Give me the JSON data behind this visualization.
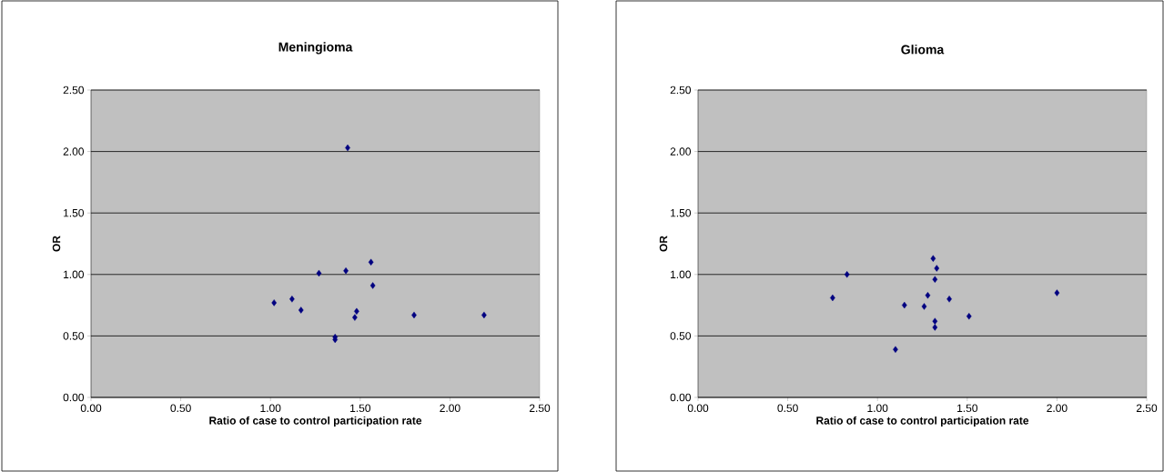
{
  "chart_data": [
    {
      "type": "scatter",
      "title": "Meningioma",
      "xlabel": "Ratio of case to control participation rate",
      "ylabel": "OR",
      "grid": "y",
      "marker": "diamond",
      "xlim": [
        0,
        2.5
      ],
      "ylim": [
        0,
        2.5
      ],
      "xticks": [
        {
          "value": 0,
          "label": "0.00"
        },
        {
          "value": 0.5,
          "label": "0.50"
        },
        {
          "value": 1,
          "label": "1.00"
        },
        {
          "value": 1.5,
          "label": "1.50"
        },
        {
          "value": 2,
          "label": "2.00"
        },
        {
          "value": 2.5,
          "label": "2.50"
        }
      ],
      "yticks": [
        {
          "value": 0,
          "label": "0.00"
        },
        {
          "value": 0.5,
          "label": "0.50"
        },
        {
          "value": 1,
          "label": "1.00"
        },
        {
          "value": 1.5,
          "label": "1.50"
        },
        {
          "value": 2,
          "label": "2.00"
        },
        {
          "value": 2.5,
          "label": "2.50"
        }
      ],
      "series": [
        {
          "color": "#000080",
          "x": [
            1.02,
            1.12,
            1.17,
            1.27,
            1.36,
            1.36,
            1.42,
            1.43,
            1.47,
            1.48,
            1.56,
            1.57,
            1.8,
            2.19
          ],
          "values": [
            0.77,
            0.8,
            0.71,
            1.01,
            0.49,
            0.47,
            1.03,
            2.03,
            0.65,
            0.7,
            1.1,
            0.91,
            0.67,
            0.67
          ]
        }
      ]
    },
    {
      "type": "scatter",
      "title": "Glioma",
      "xlabel": "Ratio of case to control participation rate",
      "ylabel": "OR",
      "grid": "y",
      "marker": "diamond",
      "xlim": [
        0,
        2.5
      ],
      "ylim": [
        0,
        2.5
      ],
      "xticks": [
        {
          "value": 0,
          "label": "0.00"
        },
        {
          "value": 0.5,
          "label": "0.50"
        },
        {
          "value": 1,
          "label": "1.00"
        },
        {
          "value": 1.5,
          "label": "1.50"
        },
        {
          "value": 2,
          "label": "2.00"
        },
        {
          "value": 2.5,
          "label": "2.50"
        }
      ],
      "yticks": [
        {
          "value": 0,
          "label": "0.00"
        },
        {
          "value": 0.5,
          "label": "0.50"
        },
        {
          "value": 1,
          "label": "1.00"
        },
        {
          "value": 1.5,
          "label": "1.50"
        },
        {
          "value": 2,
          "label": "2.00"
        },
        {
          "value": 2.5,
          "label": "2.50"
        }
      ],
      "series": [
        {
          "color": "#000080",
          "x": [
            0.75,
            0.83,
            1.1,
            1.15,
            1.26,
            1.28,
            1.31,
            1.33,
            1.32,
            1.32,
            1.32,
            1.4,
            1.51,
            2.0
          ],
          "values": [
            0.81,
            1.0,
            0.39,
            0.75,
            0.74,
            0.83,
            1.13,
            1.05,
            0.96,
            0.62,
            0.57,
            0.8,
            0.66,
            0.85
          ]
        }
      ]
    }
  ]
}
